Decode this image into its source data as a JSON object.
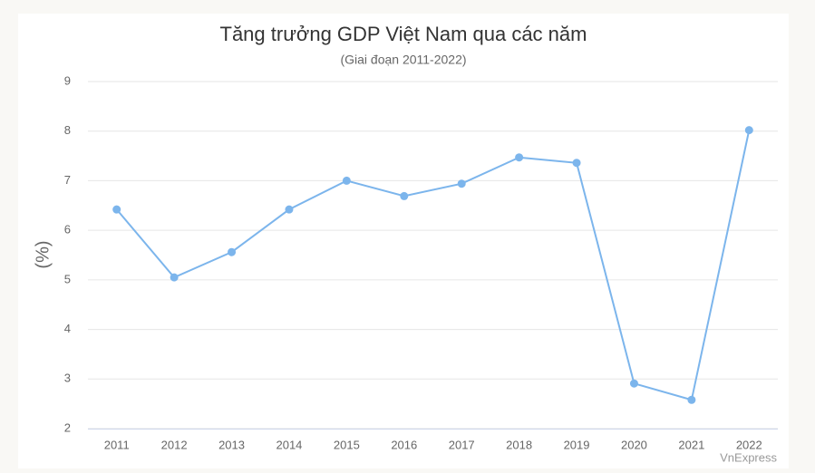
{
  "chart_data": {
    "type": "line",
    "title": "Tăng trưởng GDP Việt Nam qua các năm",
    "subtitle": "(Giai đoạn 2011-2022)",
    "y_label": "(%)",
    "source": "VnExpress",
    "categories": [
      "2011",
      "2012",
      "2013",
      "2014",
      "2015",
      "2016",
      "2017",
      "2018",
      "2019",
      "2020",
      "2021",
      "2022"
    ],
    "series": [
      {
        "name": "GDP",
        "color": "#7cb5ec",
        "values": [
          6.42,
          5.05,
          5.56,
          6.42,
          7.0,
          6.69,
          6.94,
          7.47,
          7.36,
          2.91,
          2.58,
          8.02
        ]
      }
    ],
    "ylim": [
      2,
      9
    ],
    "yticks": [
      2,
      3,
      4,
      5,
      6,
      7,
      8,
      9
    ],
    "grid": true
  }
}
